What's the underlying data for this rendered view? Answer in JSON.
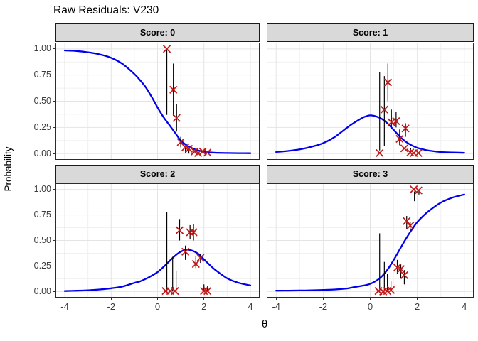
{
  "title": "Raw Residuals: V230",
  "colors": {
    "curve": "#0000EE",
    "marker": "#C01818",
    "segment": "#000000",
    "strip_bg": "#D9D9D9",
    "panel_border": "#2b2b2b",
    "grid_major": "#E4E4E4",
    "grid_minor": "#F1F1F1",
    "axis_text": "#3c3c3c"
  },
  "chart_data": {
    "type": "line",
    "title": "Raw Residuals: V230",
    "xlabel": "θ",
    "ylabel": "Probability",
    "xlim": [
      -4,
      4
    ],
    "ylim": [
      0,
      1
    ],
    "grid": "on",
    "legend": "none",
    "x_ticks": [
      {
        "v": -4,
        "label": "-4"
      },
      {
        "v": -2,
        "label": "-2"
      },
      {
        "v": 0,
        "label": "0"
      },
      {
        "v": 2,
        "label": "2"
      },
      {
        "v": 4,
        "label": "4"
      }
    ],
    "y_ticks": [
      {
        "v": 1.0,
        "label": "1.00"
      },
      {
        "v": 0.75,
        "label": "0.75"
      },
      {
        "v": 0.5,
        "label": "0.50"
      },
      {
        "v": 0.25,
        "label": "0.25"
      },
      {
        "v": 0.0,
        "label": "0.00"
      }
    ],
    "x_minor": [
      -3,
      -1,
      1,
      3
    ],
    "y_minor": [
      0.125,
      0.375,
      0.625,
      0.875
    ],
    "curve_theta": [
      -4,
      -3.5,
      -3,
      -2.5,
      -2,
      -1.5,
      -1,
      -0.75,
      -0.5,
      -0.25,
      0,
      0.25,
      0.5,
      0.75,
      1,
      1.25,
      1.5,
      1.75,
      2,
      2.25,
      2.5,
      3,
      3.5,
      4
    ],
    "panels": [
      {
        "label": "Score: 0",
        "curve_p": [
          0.985,
          0.98,
          0.968,
          0.948,
          0.915,
          0.855,
          0.76,
          0.7,
          0.63,
          0.54,
          0.44,
          0.35,
          0.275,
          0.2,
          0.125,
          0.08,
          0.05,
          0.03,
          0.018,
          0.012,
          0.008,
          0.005,
          0.004,
          0.003
        ],
        "points": [
          [
            0.4,
            1.0
          ],
          [
            0.68,
            0.61
          ],
          [
            0.82,
            0.34
          ],
          [
            1.0,
            0.11
          ],
          [
            1.2,
            0.06
          ],
          [
            1.35,
            0.045
          ],
          [
            1.6,
            0.02
          ],
          [
            1.75,
            0.005
          ],
          [
            1.95,
            0.02
          ],
          [
            2.15,
            0.01
          ]
        ],
        "segments": [
          [
            0.4,
            0.37,
            1.0
          ],
          [
            0.68,
            0.36,
            0.86
          ],
          [
            0.82,
            0.21,
            0.47
          ],
          [
            1.0,
            0.06,
            0.16
          ],
          [
            1.2,
            0.005,
            0.06
          ],
          [
            1.35,
            0.0,
            0.05
          ]
        ]
      },
      {
        "label": "Score: 1",
        "curve_p": [
          0.015,
          0.025,
          0.04,
          0.065,
          0.1,
          0.16,
          0.245,
          0.285,
          0.32,
          0.35,
          0.365,
          0.355,
          0.33,
          0.285,
          0.225,
          0.165,
          0.115,
          0.08,
          0.055,
          0.04,
          0.028,
          0.015,
          0.01,
          0.007
        ],
        "points": [
          [
            0.4,
            0.005
          ],
          [
            0.6,
            0.42
          ],
          [
            0.75,
            0.68
          ],
          [
            0.9,
            0.3
          ],
          [
            1.1,
            0.31
          ],
          [
            1.25,
            0.14
          ],
          [
            1.5,
            0.24
          ],
          [
            1.45,
            0.05
          ],
          [
            1.7,
            0.01
          ],
          [
            1.85,
            0.005
          ],
          [
            2.05,
            0.005
          ]
        ],
        "segments": [
          [
            0.4,
            0.03,
            0.78
          ],
          [
            0.6,
            0.07,
            0.74
          ],
          [
            0.75,
            0.5,
            0.86
          ],
          [
            0.9,
            0.25,
            0.42
          ],
          [
            1.1,
            0.25,
            0.4
          ],
          [
            1.25,
            0.08,
            0.23
          ],
          [
            1.5,
            0.16,
            0.29
          ],
          [
            1.72,
            0.0,
            0.055
          ]
        ]
      },
      {
        "label": "Score: 2",
        "curve_p": [
          0.005,
          0.008,
          0.012,
          0.02,
          0.032,
          0.05,
          0.085,
          0.1,
          0.125,
          0.155,
          0.19,
          0.24,
          0.295,
          0.35,
          0.39,
          0.41,
          0.4,
          0.37,
          0.315,
          0.26,
          0.21,
          0.13,
          0.085,
          0.06
        ],
        "points": [
          [
            0.35,
            0.005
          ],
          [
            0.55,
            0.005
          ],
          [
            0.75,
            0.005
          ],
          [
            0.95,
            0.6
          ],
          [
            1.2,
            0.39
          ],
          [
            1.4,
            0.58
          ],
          [
            1.55,
            0.58
          ],
          [
            1.65,
            0.27
          ],
          [
            1.85,
            0.33
          ],
          [
            2.0,
            0.005
          ],
          [
            2.15,
            0.005
          ]
        ],
        "segments": [
          [
            0.4,
            0.0,
            0.78
          ],
          [
            0.65,
            0.0,
            0.34
          ],
          [
            0.8,
            0.0,
            0.2
          ],
          [
            0.95,
            0.5,
            0.71
          ],
          [
            1.2,
            0.31,
            0.45
          ],
          [
            1.4,
            0.51,
            0.65
          ],
          [
            1.55,
            0.5,
            0.66
          ],
          [
            1.65,
            0.23,
            0.35
          ],
          [
            1.85,
            0.28,
            0.37
          ],
          [
            2.0,
            0.0,
            0.07
          ],
          [
            2.15,
            0.0,
            0.05
          ]
        ]
      },
      {
        "label": "Score: 3",
        "curve_p": [
          0.008,
          0.009,
          0.01,
          0.012,
          0.015,
          0.02,
          0.03,
          0.04,
          0.05,
          0.06,
          0.075,
          0.105,
          0.15,
          0.22,
          0.31,
          0.41,
          0.51,
          0.6,
          0.68,
          0.74,
          0.79,
          0.87,
          0.92,
          0.95
        ],
        "points": [
          [
            0.35,
            0.005
          ],
          [
            0.55,
            0.0
          ],
          [
            0.72,
            0.005
          ],
          [
            0.88,
            0.015
          ],
          [
            1.15,
            0.235
          ],
          [
            1.3,
            0.22
          ],
          [
            1.45,
            0.16
          ],
          [
            1.55,
            0.69
          ],
          [
            1.7,
            0.645
          ],
          [
            1.85,
            1.0
          ],
          [
            2.05,
            0.99
          ]
        ],
        "segments": [
          [
            0.4,
            0.0,
            0.57
          ],
          [
            0.6,
            0.0,
            0.29
          ],
          [
            0.73,
            0.0,
            0.17
          ],
          [
            0.88,
            0.0,
            0.1
          ],
          [
            1.15,
            0.17,
            0.31
          ],
          [
            1.3,
            0.13,
            0.27
          ],
          [
            1.45,
            0.07,
            0.21
          ],
          [
            1.55,
            0.61,
            0.74
          ],
          [
            1.7,
            0.59,
            0.68
          ],
          [
            1.88,
            0.885,
            0.98
          ],
          [
            2.07,
            0.95,
            1.0
          ]
        ]
      }
    ]
  }
}
